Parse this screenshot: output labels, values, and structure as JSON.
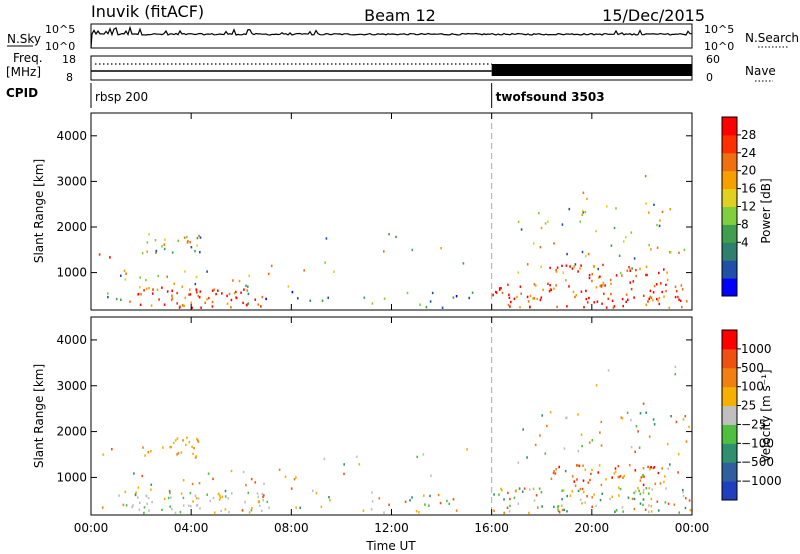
{
  "header": {
    "station": "Inuvik (fitACF)",
    "beam": "Beam 12",
    "date": "15/Dec/2015"
  },
  "top_panels": {
    "nsky_label": "N.Sky",
    "nsky_ticks": [
      "10^5",
      "10^0"
    ],
    "nsearch_label": "N.Search",
    "nsearch_ticks": [
      "10^5",
      "10^0"
    ],
    "freq_label": "Freq.",
    "freq_unit": "[MHz]",
    "freq_ticks": [
      "18",
      "8"
    ],
    "nave_label": "Nave",
    "nave_ticks": [
      "60",
      "0"
    ],
    "cpid_label": "CPID",
    "cpid_segments": [
      {
        "name": "rbsp 200",
        "start_hour": 0,
        "end_hour": 16
      },
      {
        "name": "twofsound 3503",
        "start_hour": 16,
        "end_hour": 24
      }
    ]
  },
  "chart_data": [
    {
      "type": "heatmap",
      "name": "power-panel",
      "ylabel": "Slant Range [km]",
      "xlim": [
        0,
        24
      ],
      "ylim": [
        180,
        4500
      ],
      "yticks": [
        "1000",
        "2000",
        "3000",
        "4000"
      ],
      "colorbar_label": "Power [dB]",
      "colorbar_ticks": [
        "28",
        "24",
        "20",
        "16",
        "12",
        "8",
        "4"
      ],
      "colorbar_colors": [
        "#0000ff",
        "#1f4fa8",
        "#2f7f6f",
        "#3f9f4f",
        "#7fcf3f",
        "#e0d020",
        "#f5a000",
        "#f07010",
        "#ff3000",
        "#ff0000"
      ],
      "marker_hour": 16
    },
    {
      "type": "heatmap",
      "name": "velocity-panel",
      "ylabel": "Slant Range [km]",
      "xlabel": "Time UT",
      "xlim": [
        0,
        24
      ],
      "ylim": [
        180,
        4500
      ],
      "yticks": [
        "1000",
        "2000",
        "3000",
        "4000"
      ],
      "xticks": [
        "00:00",
        "04:00",
        "08:00",
        "12:00",
        "16:00",
        "20:00",
        "00:00"
      ],
      "colorbar_label": "Velocity [m s⁻¹]",
      "colorbar_ticks": [
        "1000",
        "500",
        "100",
        "25",
        "−25",
        "−100",
        "−500",
        "−1000"
      ],
      "colorbar_colors": [
        "#1f3fbf",
        "#2f5f9f",
        "#2f8f6f",
        "#4fbf3f",
        "#c0c0c0",
        "#f5b000",
        "#f08010",
        "#f05010",
        "#ff0000"
      ],
      "marker_hour": 16
    }
  ]
}
